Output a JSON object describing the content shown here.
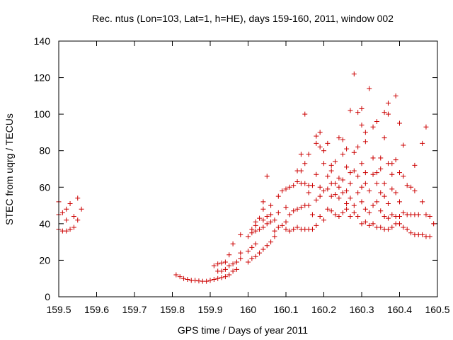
{
  "chart_data": {
    "type": "scatter",
    "title": "Rec. ntus (Lon=103, Lat=1, h=HE), days 159-160, 2011, window 002",
    "xlabel": "GPS time / Days of year 2011",
    "ylabel": "STEC from uqrg / TECUs",
    "xlim": [
      159.5,
      160.5
    ],
    "ylim": [
      0,
      140
    ],
    "xticks": [
      "159.5",
      "159.6",
      "159.7",
      "159.8",
      "159.9",
      "160",
      "160.1",
      "160.2",
      "160.3",
      "160.4",
      "160.5"
    ],
    "yticks": [
      "0",
      "20",
      "40",
      "60",
      "80",
      "100",
      "120",
      "140"
    ],
    "grid": false,
    "marker": "+",
    "color": "#cc0000",
    "points": [
      [
        159.5,
        52
      ],
      [
        159.5,
        45
      ],
      [
        159.5,
        37
      ],
      [
        159.51,
        46
      ],
      [
        159.51,
        36
      ],
      [
        159.52,
        48
      ],
      [
        159.52,
        42
      ],
      [
        159.52,
        36
      ],
      [
        159.53,
        51
      ],
      [
        159.53,
        37
      ],
      [
        159.54,
        44
      ],
      [
        159.54,
        38
      ],
      [
        159.55,
        54
      ],
      [
        159.55,
        42
      ],
      [
        159.56,
        48
      ],
      [
        159.81,
        12
      ],
      [
        159.82,
        11
      ],
      [
        159.83,
        10
      ],
      [
        159.84,
        9.5
      ],
      [
        159.85,
        9
      ],
      [
        159.86,
        9
      ],
      [
        159.87,
        8.7
      ],
      [
        159.88,
        8.5
      ],
      [
        159.89,
        8.5
      ],
      [
        159.9,
        9
      ],
      [
        159.91,
        9.5
      ],
      [
        159.91,
        17
      ],
      [
        159.92,
        10
      ],
      [
        159.92,
        14
      ],
      [
        159.92,
        18
      ],
      [
        159.93,
        10.5
      ],
      [
        159.93,
        14
      ],
      [
        159.93,
        18.5
      ],
      [
        159.94,
        11
      ],
      [
        159.94,
        15
      ],
      [
        159.94,
        19
      ],
      [
        159.95,
        12
      ],
      [
        159.95,
        17
      ],
      [
        159.95,
        23
      ],
      [
        159.96,
        14
      ],
      [
        159.96,
        18
      ],
      [
        159.96,
        29
      ],
      [
        159.97,
        15
      ],
      [
        159.97,
        19
      ],
      [
        159.98,
        21
      ],
      [
        159.98,
        24
      ],
      [
        159.98,
        34
      ],
      [
        160.0,
        19
      ],
      [
        160.0,
        25
      ],
      [
        160.0,
        33
      ],
      [
        160.01,
        21
      ],
      [
        160.01,
        27
      ],
      [
        160.01,
        35
      ],
      [
        160.01,
        37
      ],
      [
        160.02,
        22
      ],
      [
        160.02,
        29
      ],
      [
        160.02,
        36
      ],
      [
        160.02,
        39
      ],
      [
        160.02,
        41
      ],
      [
        160.03,
        24
      ],
      [
        160.03,
        37
      ],
      [
        160.03,
        43
      ],
      [
        160.04,
        26
      ],
      [
        160.04,
        38
      ],
      [
        160.04,
        42
      ],
      [
        160.04,
        48
      ],
      [
        160.04,
        52
      ],
      [
        160.05,
        28
      ],
      [
        160.05,
        40
      ],
      [
        160.05,
        44
      ],
      [
        160.05,
        66
      ],
      [
        160.06,
        30
      ],
      [
        160.06,
        41
      ],
      [
        160.06,
        45
      ],
      [
        160.06,
        50
      ],
      [
        160.07,
        33
      ],
      [
        160.07,
        36
      ],
      [
        160.07,
        42
      ],
      [
        160.08,
        38
      ],
      [
        160.08,
        46
      ],
      [
        160.08,
        55
      ],
      [
        160.09,
        39
      ],
      [
        160.09,
        58
      ],
      [
        160.1,
        37
      ],
      [
        160.1,
        41
      ],
      [
        160.1,
        49
      ],
      [
        160.1,
        59
      ],
      [
        160.11,
        36
      ],
      [
        160.11,
        45
      ],
      [
        160.11,
        60
      ],
      [
        160.12,
        37
      ],
      [
        160.12,
        47
      ],
      [
        160.12,
        61
      ],
      [
        160.13,
        38
      ],
      [
        160.13,
        48
      ],
      [
        160.13,
        63
      ],
      [
        160.13,
        69
      ],
      [
        160.14,
        37
      ],
      [
        160.14,
        49
      ],
      [
        160.14,
        62
      ],
      [
        160.14,
        69
      ],
      [
        160.14,
        78
      ],
      [
        160.15,
        37
      ],
      [
        160.15,
        50
      ],
      [
        160.15,
        62
      ],
      [
        160.15,
        73
      ],
      [
        160.15,
        100
      ],
      [
        160.16,
        37
      ],
      [
        160.16,
        50
      ],
      [
        160.16,
        57
      ],
      [
        160.16,
        61
      ],
      [
        160.16,
        78
      ],
      [
        160.17,
        37
      ],
      [
        160.17,
        45
      ],
      [
        160.17,
        61
      ],
      [
        160.18,
        39
      ],
      [
        160.18,
        53
      ],
      [
        160.18,
        67
      ],
      [
        160.18,
        84
      ],
      [
        160.18,
        88
      ],
      [
        160.19,
        44
      ],
      [
        160.19,
        55
      ],
      [
        160.19,
        60
      ],
      [
        160.19,
        82
      ],
      [
        160.19,
        90
      ],
      [
        160.2,
        42
      ],
      [
        160.2,
        58
      ],
      [
        160.2,
        73
      ],
      [
        160.2,
        80
      ],
      [
        160.21,
        48
      ],
      [
        160.21,
        59
      ],
      [
        160.21,
        66
      ],
      [
        160.21,
        84
      ],
      [
        160.22,
        47
      ],
      [
        160.22,
        55
      ],
      [
        160.22,
        62
      ],
      [
        160.22,
        69
      ],
      [
        160.22,
        72
      ],
      [
        160.23,
        45
      ],
      [
        160.23,
        56
      ],
      [
        160.23,
        62
      ],
      [
        160.23,
        74
      ],
      [
        160.24,
        44
      ],
      [
        160.24,
        54
      ],
      [
        160.24,
        60
      ],
      [
        160.24,
        65
      ],
      [
        160.24,
        87
      ],
      [
        160.25,
        46
      ],
      [
        160.25,
        57
      ],
      [
        160.25,
        64
      ],
      [
        160.25,
        78
      ],
      [
        160.25,
        86
      ],
      [
        160.26,
        48
      ],
      [
        160.26,
        51
      ],
      [
        160.26,
        58
      ],
      [
        160.26,
        71
      ],
      [
        160.26,
        81
      ],
      [
        160.27,
        44
      ],
      [
        160.27,
        54
      ],
      [
        160.27,
        62
      ],
      [
        160.27,
        68
      ],
      [
        160.27,
        102
      ],
      [
        160.28,
        46
      ],
      [
        160.28,
        50
      ],
      [
        160.28,
        69
      ],
      [
        160.28,
        79
      ],
      [
        160.28,
        122
      ],
      [
        160.29,
        44
      ],
      [
        160.29,
        57
      ],
      [
        160.29,
        66
      ],
      [
        160.29,
        82
      ],
      [
        160.29,
        101
      ],
      [
        160.3,
        40
      ],
      [
        160.3,
        52
      ],
      [
        160.3,
        60
      ],
      [
        160.3,
        73
      ],
      [
        160.3,
        94
      ],
      [
        160.3,
        103
      ],
      [
        160.31,
        41
      ],
      [
        160.31,
        48
      ],
      [
        160.31,
        62
      ],
      [
        160.31,
        68
      ],
      [
        160.31,
        85
      ],
      [
        160.31,
        90
      ],
      [
        160.32,
        39
      ],
      [
        160.32,
        46
      ],
      [
        160.32,
        58
      ],
      [
        160.32,
        114
      ],
      [
        160.33,
        40
      ],
      [
        160.33,
        50
      ],
      [
        160.33,
        67
      ],
      [
        160.33,
        76
      ],
      [
        160.33,
        93
      ],
      [
        160.34,
        38
      ],
      [
        160.34,
        52
      ],
      [
        160.34,
        62
      ],
      [
        160.34,
        68
      ],
      [
        160.34,
        96
      ],
      [
        160.35,
        38
      ],
      [
        160.35,
        47
      ],
      [
        160.35,
        57
      ],
      [
        160.35,
        70
      ],
      [
        160.35,
        76
      ],
      [
        160.36,
        37
      ],
      [
        160.36,
        44
      ],
      [
        160.36,
        55
      ],
      [
        160.36,
        62
      ],
      [
        160.36,
        87
      ],
      [
        160.36,
        101
      ],
      [
        160.37,
        37
      ],
      [
        160.37,
        43
      ],
      [
        160.37,
        51
      ],
      [
        160.37,
        73
      ],
      [
        160.37,
        100
      ],
      [
        160.37,
        106
      ],
      [
        160.38,
        38
      ],
      [
        160.38,
        45
      ],
      [
        160.38,
        59
      ],
      [
        160.38,
        67
      ],
      [
        160.38,
        73
      ],
      [
        160.39,
        40
      ],
      [
        160.39,
        44
      ],
      [
        160.39,
        57
      ],
      [
        160.39,
        75
      ],
      [
        160.39,
        110
      ],
      [
        160.4,
        40
      ],
      [
        160.4,
        44
      ],
      [
        160.4,
        52
      ],
      [
        160.4,
        68
      ],
      [
        160.4,
        95
      ],
      [
        160.41,
        38
      ],
      [
        160.41,
        46
      ],
      [
        160.41,
        66
      ],
      [
        160.41,
        83
      ],
      [
        160.42,
        37
      ],
      [
        160.42,
        45
      ],
      [
        160.42,
        61
      ],
      [
        160.43,
        35
      ],
      [
        160.43,
        45
      ],
      [
        160.43,
        60
      ],
      [
        160.44,
        34
      ],
      [
        160.44,
        45
      ],
      [
        160.44,
        58
      ],
      [
        160.44,
        72
      ],
      [
        160.45,
        34
      ],
      [
        160.45,
        45
      ],
      [
        160.46,
        34
      ],
      [
        160.46,
        52
      ],
      [
        160.46,
        84
      ],
      [
        160.47,
        33
      ],
      [
        160.47,
        45
      ],
      [
        160.47,
        93
      ],
      [
        160.48,
        33
      ],
      [
        160.48,
        44
      ],
      [
        160.49,
        40
      ]
    ]
  }
}
